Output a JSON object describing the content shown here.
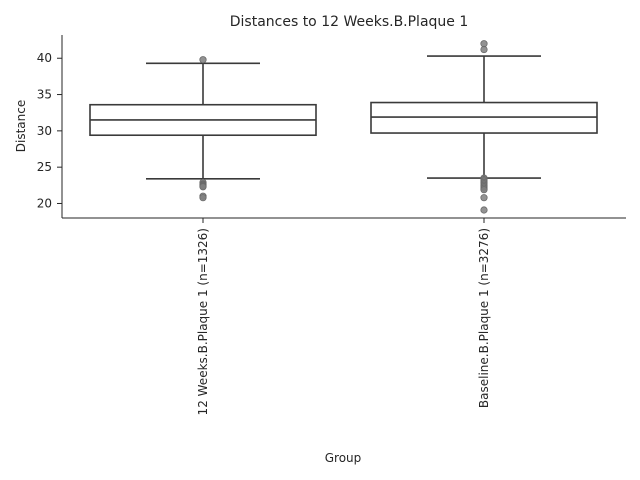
{
  "chart_data": {
    "type": "box",
    "title": "Distances to 12 Weeks.B.Plaque 1",
    "xlabel": "Group",
    "ylabel": "Distance",
    "ylim": [
      18,
      43.2
    ],
    "yticks": [
      20,
      25,
      30,
      35,
      40
    ],
    "grid": false,
    "colors": {
      "box_edge": "#3a3a3a",
      "box_fill": "#ffffff",
      "outlier": "#7f7f7f",
      "axis": "#262626"
    },
    "groups": [
      {
        "label": "12 Weeks.B.Plaque 1 (n=1326)",
        "whisker_low": 23.4,
        "q1": 29.4,
        "median": 31.5,
        "q3": 33.6,
        "whisker_high": 39.3,
        "outliers": [
          39.8,
          22.9,
          22.7,
          22.6,
          22.5,
          22.4,
          22.3,
          21.0,
          20.8
        ]
      },
      {
        "label": "Baseline.B.Plaque 1 (n=3276)",
        "whisker_low": 23.5,
        "q1": 29.7,
        "median": 31.9,
        "q3": 33.9,
        "whisker_high": 40.3,
        "outliers": [
          42.0,
          41.2,
          23.5,
          23.3,
          23.1,
          22.9,
          22.7,
          22.5,
          22.3,
          22.1,
          21.9,
          20.8,
          19.1
        ]
      }
    ]
  }
}
